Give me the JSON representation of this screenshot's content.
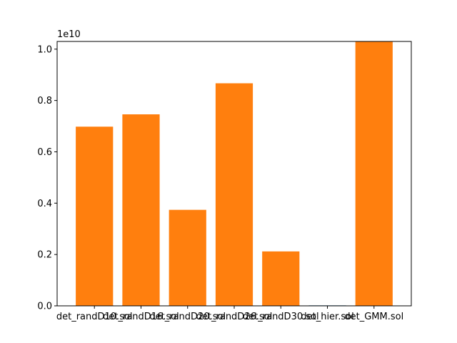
{
  "chart_data": {
    "type": "bar",
    "title": "",
    "xlabel": "",
    "ylabel": "",
    "categories": [
      "det_randD10.sol",
      "det_randD16.sol",
      "det_randD20.sol",
      "det_randD26.sol",
      "det_randD30.sol",
      "det_hier.sol",
      "det_GMM.sol"
    ],
    "series": [
      {
        "color": "#1f77b4",
        "values": [
          28000000,
          30000000,
          22000000,
          30000000,
          40000000,
          18000000,
          15000000
        ]
      },
      {
        "color": "#ff7f0e",
        "values": [
          6980000000,
          7460000000,
          3740000000,
          8670000000,
          2120000000,
          0,
          10300000000
        ]
      }
    ],
    "y_offset_label": "1e10",
    "y_ticks": [
      0,
      2000000000,
      4000000000,
      6000000000,
      8000000000,
      10000000000
    ],
    "y_tick_labels": [
      "0.0",
      "0.2",
      "0.4",
      "0.6",
      "0.8",
      "1.0"
    ],
    "ylim": [
      0,
      10300000000
    ],
    "grid": false
  }
}
